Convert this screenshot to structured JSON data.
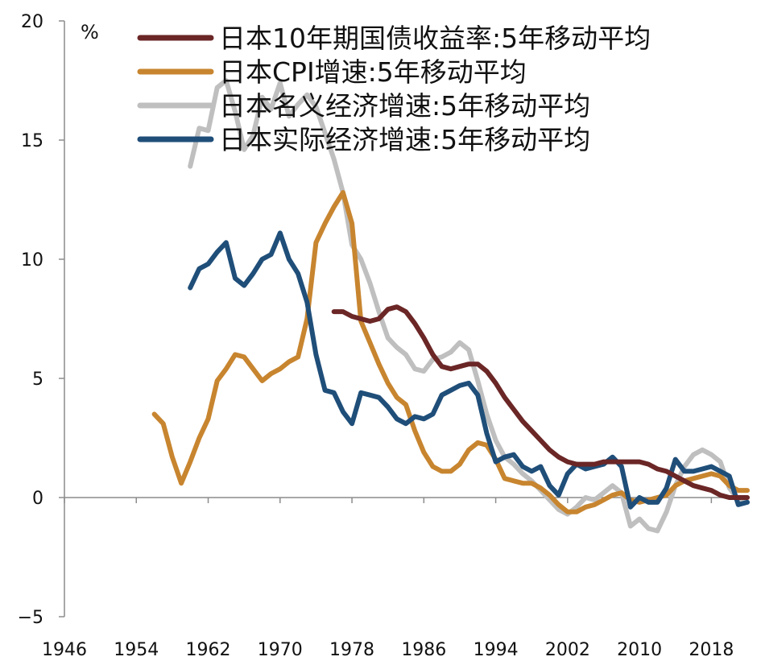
{
  "chart_data": {
    "type": "line",
    "unit_label": "%",
    "xlim": [
      1946,
      2022
    ],
    "ylim": [
      -5,
      20
    ],
    "x_ticks": [
      1946,
      1954,
      1962,
      1970,
      1978,
      1986,
      1994,
      2002,
      2010,
      2018
    ],
    "y_ticks": [
      -5,
      0,
      5,
      10,
      15,
      20
    ],
    "grid": false,
    "legend_position": "top",
    "series": [
      {
        "name": "日本10年期国债收益率:5年移动平均",
        "color": "#6b2626",
        "points": [
          [
            1976,
            7.8
          ],
          [
            1977,
            7.8
          ],
          [
            1978,
            7.6
          ],
          [
            1979,
            7.5
          ],
          [
            1980,
            7.4
          ],
          [
            1981,
            7.5
          ],
          [
            1982,
            7.9
          ],
          [
            1983,
            8.0
          ],
          [
            1984,
            7.8
          ],
          [
            1985,
            7.3
          ],
          [
            1986,
            6.7
          ],
          [
            1987,
            6.0
          ],
          [
            1988,
            5.5
          ],
          [
            1989,
            5.4
          ],
          [
            1990,
            5.5
          ],
          [
            1991,
            5.6
          ],
          [
            1992,
            5.6
          ],
          [
            1993,
            5.3
          ],
          [
            1994,
            4.8
          ],
          [
            1995,
            4.2
          ],
          [
            1996,
            3.7
          ],
          [
            1997,
            3.2
          ],
          [
            1998,
            2.8
          ],
          [
            1999,
            2.4
          ],
          [
            2000,
            2.0
          ],
          [
            2001,
            1.7
          ],
          [
            2002,
            1.5
          ],
          [
            2003,
            1.4
          ],
          [
            2004,
            1.4
          ],
          [
            2005,
            1.4
          ],
          [
            2006,
            1.5
          ],
          [
            2007,
            1.5
          ],
          [
            2008,
            1.5
          ],
          [
            2009,
            1.5
          ],
          [
            2010,
            1.5
          ],
          [
            2011,
            1.4
          ],
          [
            2012,
            1.2
          ],
          [
            2013,
            1.1
          ],
          [
            2014,
            0.9
          ],
          [
            2015,
            0.7
          ],
          [
            2016,
            0.5
          ],
          [
            2017,
            0.4
          ],
          [
            2018,
            0.3
          ],
          [
            2019,
            0.1
          ],
          [
            2020,
            0.0
          ],
          [
            2021,
            0.0
          ],
          [
            2022,
            0.0
          ]
        ]
      },
      {
        "name": "日本CPI增速:5年移动平均",
        "color": "#c8852f",
        "points": [
          [
            1956,
            3.5
          ],
          [
            1957,
            3.1
          ],
          [
            1958,
            1.7
          ],
          [
            1959,
            0.6
          ],
          [
            1960,
            1.5
          ],
          [
            1961,
            2.5
          ],
          [
            1962,
            3.3
          ],
          [
            1963,
            4.9
          ],
          [
            1964,
            5.4
          ],
          [
            1965,
            6.0
          ],
          [
            1966,
            5.9
          ],
          [
            1967,
            5.4
          ],
          [
            1968,
            4.9
          ],
          [
            1969,
            5.2
          ],
          [
            1970,
            5.4
          ],
          [
            1971,
            5.7
          ],
          [
            1972,
            5.9
          ],
          [
            1973,
            7.5
          ],
          [
            1974,
            10.7
          ],
          [
            1975,
            11.5
          ],
          [
            1976,
            12.2
          ],
          [
            1977,
            12.8
          ],
          [
            1978,
            11.5
          ],
          [
            1979,
            7.4
          ],
          [
            1980,
            6.5
          ],
          [
            1981,
            5.6
          ],
          [
            1982,
            4.8
          ],
          [
            1983,
            4.2
          ],
          [
            1984,
            3.9
          ],
          [
            1985,
            2.8
          ],
          [
            1986,
            1.9
          ],
          [
            1987,
            1.3
          ],
          [
            1988,
            1.1
          ],
          [
            1989,
            1.1
          ],
          [
            1990,
            1.4
          ],
          [
            1991,
            2.0
          ],
          [
            1992,
            2.3
          ],
          [
            1993,
            2.2
          ],
          [
            1994,
            1.6
          ],
          [
            1995,
            0.8
          ],
          [
            1996,
            0.7
          ],
          [
            1997,
            0.6
          ],
          [
            1998,
            0.6
          ],
          [
            1999,
            0.4
          ],
          [
            2000,
            0.1
          ],
          [
            2001,
            -0.3
          ],
          [
            2002,
            -0.6
          ],
          [
            2003,
            -0.6
          ],
          [
            2004,
            -0.4
          ],
          [
            2005,
            -0.3
          ],
          [
            2006,
            -0.1
          ],
          [
            2007,
            0.1
          ],
          [
            2008,
            0.2
          ],
          [
            2009,
            -0.1
          ],
          [
            2010,
            -0.2
          ],
          [
            2011,
            -0.1
          ],
          [
            2012,
            0.0
          ],
          [
            2013,
            0.1
          ],
          [
            2014,
            0.5
          ],
          [
            2015,
            0.7
          ],
          [
            2016,
            0.8
          ],
          [
            2017,
            0.9
          ],
          [
            2018,
            1.0
          ],
          [
            2019,
            0.9
          ],
          [
            2020,
            0.5
          ],
          [
            2021,
            0.3
          ],
          [
            2022,
            0.3
          ]
        ]
      },
      {
        "name": "日本名义经济增速:5年移动平均",
        "color": "#bfbfbf",
        "points": [
          [
            1960,
            13.9
          ],
          [
            1961,
            15.5
          ],
          [
            1962,
            15.4
          ],
          [
            1963,
            17.2
          ],
          [
            1964,
            17.5
          ],
          [
            1965,
            16.2
          ],
          [
            1966,
            14.6
          ],
          [
            1967,
            15.2
          ],
          [
            1968,
            16.8
          ],
          [
            1969,
            16.3
          ],
          [
            1970,
            17.4
          ],
          [
            1971,
            16.0
          ],
          [
            1972,
            16.5
          ],
          [
            1973,
            16.9
          ],
          [
            1974,
            16.4
          ],
          [
            1975,
            15.3
          ],
          [
            1976,
            14.2
          ],
          [
            1977,
            12.8
          ],
          [
            1978,
            10.6
          ],
          [
            1979,
            10.0
          ],
          [
            1980,
            9.0
          ],
          [
            1981,
            7.8
          ],
          [
            1982,
            6.7
          ],
          [
            1983,
            6.3
          ],
          [
            1984,
            6.0
          ],
          [
            1985,
            5.4
          ],
          [
            1986,
            5.3
          ],
          [
            1987,
            5.8
          ],
          [
            1988,
            5.9
          ],
          [
            1989,
            6.1
          ],
          [
            1990,
            6.5
          ],
          [
            1991,
            6.2
          ],
          [
            1992,
            4.9
          ],
          [
            1993,
            3.5
          ],
          [
            1994,
            2.4
          ],
          [
            1995,
            1.7
          ],
          [
            1996,
            1.4
          ],
          [
            1997,
            1.0
          ],
          [
            1998,
            0.7
          ],
          [
            1999,
            0.3
          ],
          [
            2000,
            -0.1
          ],
          [
            2001,
            -0.5
          ],
          [
            2002,
            -0.7
          ],
          [
            2003,
            -0.4
          ],
          [
            2004,
            0.0
          ],
          [
            2005,
            -0.1
          ],
          [
            2006,
            0.2
          ],
          [
            2007,
            0.5
          ],
          [
            2008,
            0.2
          ],
          [
            2009,
            -1.2
          ],
          [
            2010,
            -0.9
          ],
          [
            2011,
            -1.3
          ],
          [
            2012,
            -1.4
          ],
          [
            2013,
            -0.6
          ],
          [
            2014,
            0.5
          ],
          [
            2015,
            1.3
          ],
          [
            2016,
            1.8
          ],
          [
            2017,
            2.0
          ],
          [
            2018,
            1.8
          ],
          [
            2019,
            1.5
          ],
          [
            2020,
            0.4
          ],
          [
            2021,
            -0.1
          ],
          [
            2022,
            -0.2
          ]
        ]
      },
      {
        "name": "日本实际经济增速:5年移动平均",
        "color": "#1f4e79",
        "points": [
          [
            1960,
            8.8
          ],
          [
            1961,
            9.6
          ],
          [
            1962,
            9.8
          ],
          [
            1963,
            10.3
          ],
          [
            1964,
            10.7
          ],
          [
            1965,
            9.2
          ],
          [
            1966,
            8.9
          ],
          [
            1967,
            9.4
          ],
          [
            1968,
            10.0
          ],
          [
            1969,
            10.2
          ],
          [
            1970,
            11.1
          ],
          [
            1971,
            10.0
          ],
          [
            1972,
            9.4
          ],
          [
            1973,
            8.2
          ],
          [
            1974,
            6.0
          ],
          [
            1975,
            4.5
          ],
          [
            1976,
            4.4
          ],
          [
            1977,
            3.6
          ],
          [
            1978,
            3.1
          ],
          [
            1979,
            4.4
          ],
          [
            1980,
            4.3
          ],
          [
            1981,
            4.2
          ],
          [
            1982,
            3.8
          ],
          [
            1983,
            3.3
          ],
          [
            1984,
            3.1
          ],
          [
            1985,
            3.4
          ],
          [
            1986,
            3.3
          ],
          [
            1987,
            3.5
          ],
          [
            1988,
            4.3
          ],
          [
            1989,
            4.5
          ],
          [
            1990,
            4.7
          ],
          [
            1991,
            4.8
          ],
          [
            1992,
            4.3
          ],
          [
            1993,
            2.7
          ],
          [
            1994,
            1.5
          ],
          [
            1995,
            1.7
          ],
          [
            1996,
            1.8
          ],
          [
            1997,
            1.3
          ],
          [
            1998,
            1.1
          ],
          [
            1999,
            1.3
          ],
          [
            2000,
            0.5
          ],
          [
            2001,
            0.1
          ],
          [
            2002,
            1.0
          ],
          [
            2003,
            1.4
          ],
          [
            2004,
            1.2
          ],
          [
            2005,
            1.3
          ],
          [
            2006,
            1.4
          ],
          [
            2007,
            1.7
          ],
          [
            2008,
            1.3
          ],
          [
            2009,
            -0.4
          ],
          [
            2010,
            0.0
          ],
          [
            2011,
            -0.2
          ],
          [
            2012,
            -0.2
          ],
          [
            2013,
            0.4
          ],
          [
            2014,
            1.6
          ],
          [
            2015,
            1.1
          ],
          [
            2016,
            1.1
          ],
          [
            2017,
            1.2
          ],
          [
            2018,
            1.3
          ],
          [
            2019,
            1.1
          ],
          [
            2020,
            0.9
          ],
          [
            2021,
            -0.3
          ],
          [
            2022,
            -0.2
          ]
        ]
      }
    ]
  }
}
